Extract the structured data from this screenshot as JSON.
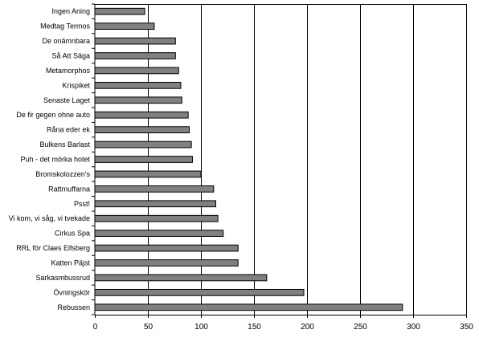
{
  "chart_data": {
    "type": "bar",
    "orientation": "horizontal",
    "categories": [
      "Ingen Aning",
      "Medtag Termos",
      "De onämnbara",
      "Så Att Säga",
      "Metamorphos",
      "Krispiket",
      "Senaste Laget",
      "De fir gegen ohne auto",
      "Råna eder ek",
      "Bulkens Barlast",
      "Puh - det mörka hotet",
      "Bromskolozzen's",
      "Rattmuffarna",
      "Psst!",
      "Vi kom, vi såg, vi tvekade",
      "Cirkus Spa",
      "RRL för Claes Elfsberg",
      "Katten Päjst",
      "Sarkasmbussrud",
      "Övningskör",
      "Rebussen"
    ],
    "values": [
      47,
      56,
      76,
      76,
      79,
      81,
      82,
      88,
      89,
      91,
      92,
      100,
      112,
      114,
      116,
      121,
      135,
      135,
      162,
      197,
      290
    ],
    "xlim": [
      0,
      350
    ],
    "xticks": [
      0,
      50,
      100,
      150,
      200,
      250,
      300,
      350
    ],
    "grid": "vertical",
    "bar_color": "#808080",
    "title": "",
    "xlabel": "",
    "ylabel": ""
  }
}
